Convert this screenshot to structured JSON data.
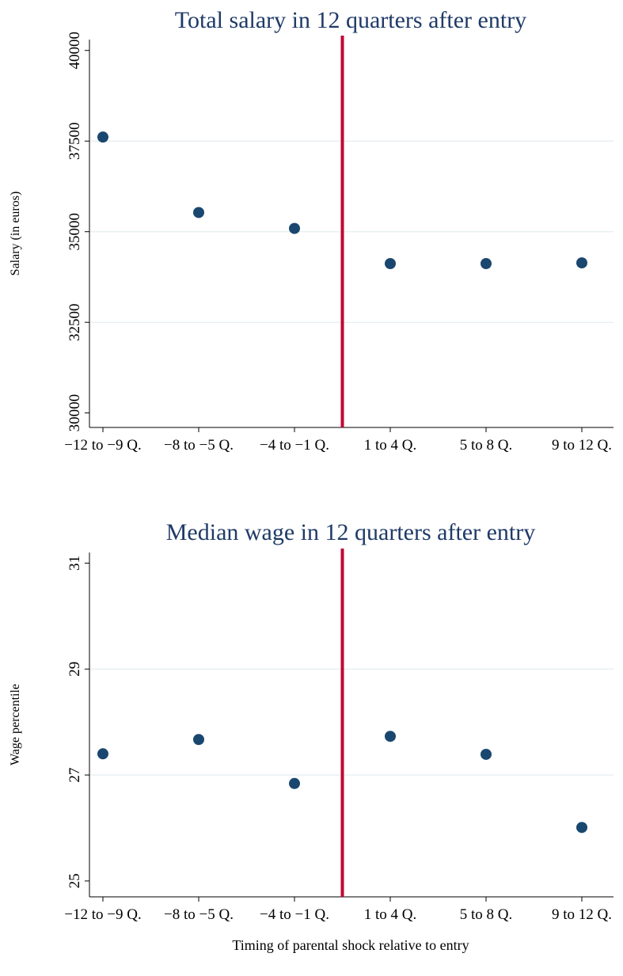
{
  "chart_data": [
    {
      "type": "scatter",
      "title": "Total salary in 12 quarters after entry",
      "ylabel": "Salary (in euros)",
      "categories": [
        "−12 to −9 Q.",
        "−8 to −5 Q.",
        "−4 to −1 Q.",
        "1 to 4 Q.",
        "5 to 8 Q.",
        "9 to 12 Q."
      ],
      "values": [
        37610,
        35530,
        35090,
        34120,
        34120,
        34140
      ],
      "color": "#1a476f",
      "ylim": [
        29600,
        40300
      ],
      "yticks": [
        30000,
        32500,
        35000,
        37500,
        40000
      ],
      "grid": true
    },
    {
      "type": "scatter",
      "title": "Median wage in 12 quarters after entry",
      "ylabel": "Wage percentile",
      "xlabel": "Timing of parental shock relative to entry",
      "categories": [
        "−12 to −9 Q.",
        "−8 to −5 Q.",
        "−4 to −1 Q.",
        "1 to 4 Q.",
        "5 to 8 Q.",
        "9 to 12 Q."
      ],
      "values": [
        27.4,
        27.67,
        26.84,
        27.73,
        27.39,
        26.01
      ],
      "color": "#1a476f",
      "ylim": [
        24.7,
        31.2
      ],
      "yticks": [
        25,
        27,
        29,
        31
      ],
      "grid": true
    }
  ]
}
